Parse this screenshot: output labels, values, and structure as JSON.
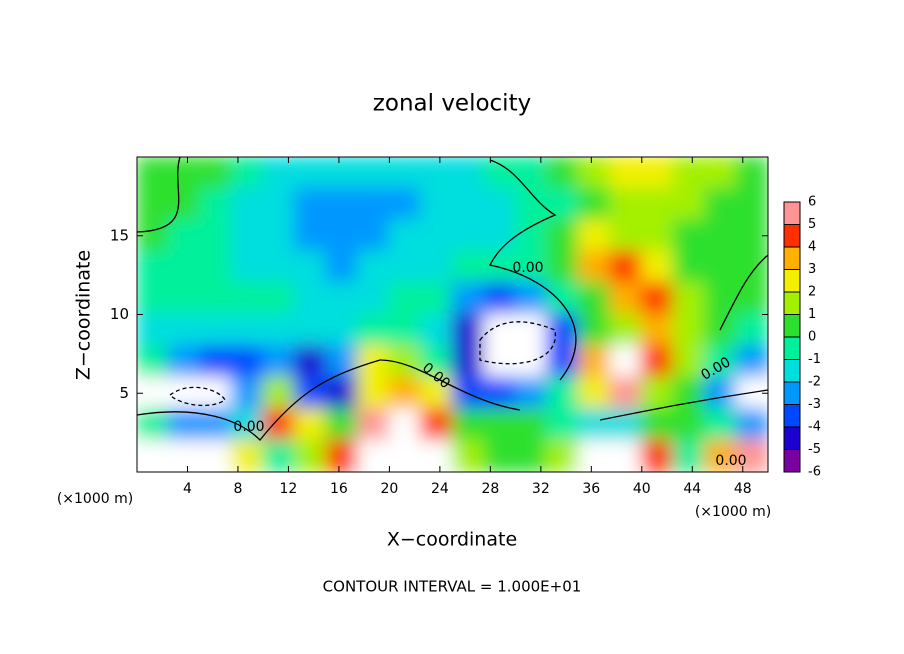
{
  "chart_data": {
    "type": "heatmap",
    "title": "zonal velocity",
    "xlabel": "X−coordinate",
    "ylabel": "Z−coordinate",
    "x_unit_label": "(×1000 m)",
    "footnote": "CONTOUR INTERVAL = 1.000E+01",
    "contour_labels": [
      "0.00",
      "0.00",
      "0.00",
      "0.00",
      "0.00"
    ],
    "xlim": [
      0,
      50
    ],
    "ylim": [
      0,
      20
    ],
    "xticks": [
      4,
      8,
      12,
      16,
      20,
      24,
      28,
      32,
      36,
      40,
      44,
      48
    ],
    "yticks": [
      5,
      10,
      15
    ],
    "x": [
      1.25,
      3.75,
      6.25,
      8.75,
      11.25,
      13.75,
      16.25,
      18.75,
      21.25,
      23.75,
      26.25,
      28.75,
      31.25,
      33.75,
      36.25,
      38.75,
      41.25,
      43.75,
      46.25,
      48.75
    ],
    "y": [
      19,
      17,
      15,
      13,
      11,
      9,
      7,
      5,
      3,
      1
    ],
    "values": [
      [
        0.5,
        0.5,
        0,
        -1,
        -1.5,
        -2,
        -2,
        -2,
        -2,
        -1.5,
        -1.5,
        -1,
        -1,
        0,
        1,
        2,
        2.5,
        1.5,
        1,
        0.5
      ],
      [
        0.5,
        0,
        -0.5,
        -1.5,
        -2,
        -2.5,
        -3,
        -3,
        -2.5,
        -2,
        -2,
        -1.5,
        -1,
        -0.5,
        0.5,
        1,
        1.5,
        1,
        0.5,
        0.5
      ],
      [
        0,
        -0.5,
        -1,
        -1.5,
        -2,
        -2.5,
        -3,
        -2.5,
        -2,
        -2,
        -2,
        -1.5,
        -1,
        0,
        2,
        1.5,
        1,
        0.5,
        0.5,
        0.5
      ],
      [
        -0.5,
        -1,
        -1,
        -1.5,
        -1.5,
        -2,
        -3,
        -2,
        -1.5,
        -1.5,
        -1,
        -1,
        -0.5,
        0,
        3,
        4,
        2,
        0.5,
        0,
        0.5
      ],
      [
        -1,
        -1,
        -1,
        -1,
        -1,
        -1.5,
        -1.5,
        -1.5,
        -1,
        -1,
        -3,
        -4,
        -3,
        -1,
        0,
        3.5,
        4,
        1,
        0.5,
        0
      ],
      [
        -1.5,
        -2,
        -2,
        -1.5,
        -2,
        -2,
        -1.5,
        -1,
        -1,
        -2,
        -5,
        -8,
        -8,
        -4,
        0,
        1,
        3,
        1,
        0,
        -1
      ],
      [
        -1,
        -3,
        -4,
        -4,
        -3,
        -5,
        -3,
        2,
        1,
        -1,
        -5,
        -8,
        -8,
        -4,
        3,
        8,
        4,
        1,
        -1,
        -3
      ],
      [
        8,
        9,
        8,
        -3,
        1,
        -4,
        -5,
        2,
        3,
        2,
        -4,
        -4,
        -3,
        -1,
        2,
        5,
        1,
        0,
        -3,
        8
      ],
      [
        -1,
        -3,
        -3,
        -2,
        4,
        2,
        0,
        5,
        7,
        4,
        0,
        0,
        0,
        -1,
        -2,
        -2,
        0,
        0,
        -1,
        -3
      ],
      [
        8,
        9,
        9,
        2,
        -1,
        1,
        4,
        8,
        8,
        6,
        1,
        0,
        0,
        1,
        8,
        8,
        4,
        -1,
        3,
        5
      ]
    ],
    "colorbar_ticks": [
      -6,
      -5,
      -4,
      -3,
      -2,
      -1,
      0,
      1,
      2,
      3,
      4,
      5,
      6
    ],
    "colors": [
      "#7a00a0",
      "#1c00d0",
      "#0048ff",
      "#0098ff",
      "#00dede",
      "#00f09c",
      "#2ee02e",
      "#a4f000",
      "#f2f000",
      "#ffb000",
      "#ff3000",
      "#ff9494"
    ],
    "out_of_range_color": "#ffffff"
  }
}
